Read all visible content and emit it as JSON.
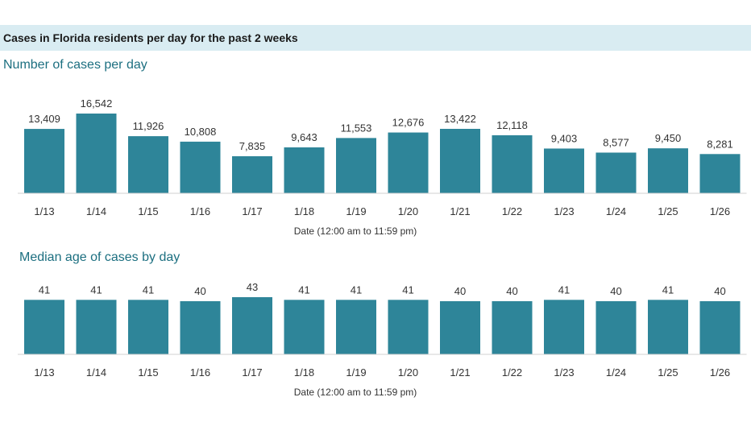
{
  "header": {
    "title": "Cases in Florida residents per day for the past 2 weeks"
  },
  "colors": {
    "bar": "#2e8599",
    "banner": "#d9ecf2",
    "title": "#1c6f80"
  },
  "chart_data": [
    {
      "type": "bar",
      "title": "Number of cases per day",
      "xlabel": "Date (12:00 am to 11:59 pm)",
      "categories": [
        "1/13",
        "1/14",
        "1/15",
        "1/16",
        "1/17",
        "1/18",
        "1/19",
        "1/20",
        "1/21",
        "1/22",
        "1/23",
        "1/24",
        "1/25",
        "1/26"
      ],
      "values": [
        13409,
        16542,
        11926,
        10808,
        7835,
        9643,
        11553,
        12676,
        13422,
        12118,
        9403,
        8577,
        9450,
        8281
      ],
      "value_labels": [
        "13,409",
        "16,542",
        "11,926",
        "10,808",
        "7,835",
        "9,643",
        "11,553",
        "12,676",
        "13,422",
        "12,118",
        "9,403",
        "8,577",
        "9,450",
        "8,281"
      ],
      "ylim": [
        0,
        16542
      ]
    },
    {
      "type": "bar",
      "title": "Median age of cases by day",
      "xlabel": "Date (12:00 am to 11:59 pm)",
      "categories": [
        "1/13",
        "1/14",
        "1/15",
        "1/16",
        "1/17",
        "1/18",
        "1/19",
        "1/20",
        "1/21",
        "1/22",
        "1/23",
        "1/24",
        "1/25",
        "1/26"
      ],
      "values": [
        41,
        41,
        41,
        40,
        43,
        41,
        41,
        41,
        40,
        40,
        41,
        40,
        41,
        40
      ],
      "value_labels": [
        "41",
        "41",
        "41",
        "40",
        "43",
        "41",
        "41",
        "41",
        "40",
        "40",
        "41",
        "40",
        "41",
        "40"
      ],
      "ylim": [
        0,
        43
      ]
    }
  ]
}
